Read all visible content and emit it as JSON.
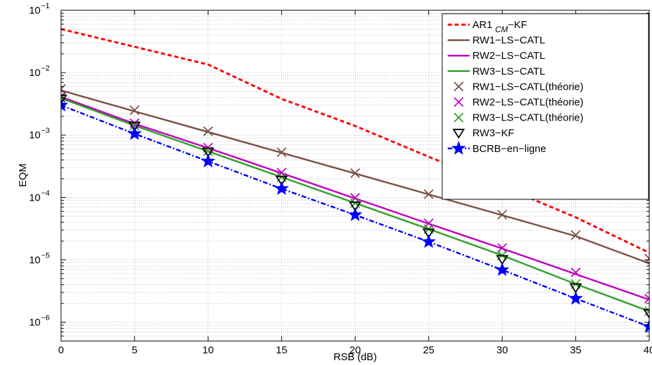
{
  "chart_data": {
    "type": "line",
    "xlabel": "RSB (dB)",
    "ylabel": "EQM",
    "xlim": [
      0,
      40
    ],
    "ylim": [
      5e-07,
      0.1
    ],
    "yscale": "log",
    "grid": true,
    "legend_position": "top-right",
    "x": [
      0,
      5,
      10,
      15,
      20,
      25,
      30,
      35,
      40
    ],
    "x_ticks": [
      "0",
      "5",
      "10",
      "15",
      "20",
      "25",
      "30",
      "35",
      "40"
    ],
    "y_ticks": [
      {
        "value": 1e-06,
        "base": "10",
        "exp": "−6"
      },
      {
        "value": 1e-05,
        "base": "10",
        "exp": "−5"
      },
      {
        "value": 0.0001,
        "base": "10",
        "exp": "−4"
      },
      {
        "value": 0.001,
        "base": "10",
        "exp": "−3"
      },
      {
        "value": 0.01,
        "base": "10",
        "exp": "−2"
      },
      {
        "value": 0.1,
        "base": "10",
        "exp": "−1"
      }
    ],
    "series": [
      {
        "name": "AR1",
        "name_sub": "CM",
        "name_suffix": "−KF",
        "color": "#ff0000",
        "dash": "6,4",
        "marker": "none",
        "width": 3,
        "values": [
          0.05,
          0.026,
          0.0135,
          0.0038,
          0.0014,
          0.00045,
          0.00015,
          4.8e-05,
          1.3e-05
        ]
      },
      {
        "name": "RW1−LS−CATL",
        "color": "#7b5146",
        "dash": "",
        "marker": "none",
        "width": 2.5,
        "values": [
          0.0052,
          0.0024,
          0.00112,
          0.00052,
          0.000242,
          0.000112,
          5.2e-05,
          2.4e-05,
          8.8e-06
        ]
      },
      {
        "name": "RW2−LS−CATL",
        "color": "#c000c0",
        "dash": "",
        "marker": "none",
        "width": 2.5,
        "values": [
          0.0041,
          0.00152,
          0.00062,
          0.000245,
          9.65e-05,
          3.8e-05,
          1.52e-05,
          5.9e-06,
          2.3e-06
        ]
      },
      {
        "name": "RW3−LS−CATL",
        "color": "#33a02c",
        "dash": "",
        "marker": "none",
        "width": 2.5,
        "values": [
          0.0039,
          0.00142,
          0.00055,
          0.000212,
          8.12e-05,
          3.12e-05,
          1.18e-05,
          4.1e-06,
          1.5e-06
        ]
      },
      {
        "name": "RW1−LS−CATL(théorie)",
        "color": "#7b5146",
        "dash": "none",
        "marker": "x",
        "values": [
          0.0055,
          0.0025,
          0.00115,
          0.00053,
          0.000245,
          0.000113,
          5.3e-05,
          2.5e-05,
          1.05e-05
        ]
      },
      {
        "name": "RW2−LS−CATL(théorie)",
        "color": "#c000c0",
        "dash": "none",
        "marker": "x",
        "values": [
          0.0042,
          0.00155,
          0.00063,
          0.00025,
          9.85e-05,
          3.85e-05,
          1.55e-05,
          6.3e-06,
          2.4e-06
        ]
      },
      {
        "name": "RW3−LS−CATL(théorie)",
        "color": "#33a02c",
        "dash": "none",
        "marker": "x",
        "values": [
          0.0039,
          0.00142,
          0.00055,
          0.000212,
          8.12e-05,
          3.12e-05,
          1.18e-05,
          4.1e-06,
          1.5e-06
        ]
      },
      {
        "name": "RW3−KF",
        "color": "#000000",
        "dash": "none",
        "marker": "triangle-down",
        "values": [
          0.0038,
          0.0014,
          0.00054,
          0.00019,
          7.35e-05,
          2.72e-05,
          1.02e-05,
          3.6e-06,
          1.4e-06
        ]
      },
      {
        "name": "BCRB−en−ligne",
        "color": "#0000ff",
        "dash": "7,3,2,3",
        "marker": "star",
        "width": 2.5,
        "values": [
          0.003,
          0.00105,
          0.00038,
          0.000138,
          5.25e-05,
          1.95e-05,
          6.9e-06,
          2.4e-06,
          8.5e-07
        ]
      }
    ]
  }
}
